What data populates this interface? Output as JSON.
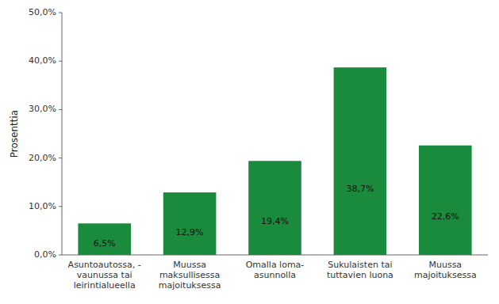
{
  "chart_data": {
    "type": "bar",
    "categories": [
      "Asuntoautossa, -\nvaunussa tai\nleirintialueella",
      "Muussa\nmaksullisessa\nmajoituksessa",
      "Omalla loma-\nasunnolla",
      "Sukulaisten tai\ntuttavien luona",
      "Muussa\nmajoituksessa"
    ],
    "values": [
      6.5,
      12.9,
      19.4,
      38.7,
      22.6
    ],
    "value_labels": [
      "6,5%",
      "12,9%",
      "19,4%",
      "38,7%",
      "22,6%"
    ],
    "data_labels": true,
    "color": "#1a8a3c",
    "ylabel": "Prosenttia",
    "ylim": [
      0,
      50
    ],
    "yticks": [
      {
        "value": 0,
        "label": "0,0%"
      },
      {
        "value": 10,
        "label": "10,0%"
      },
      {
        "value": 20,
        "label": "20,0%"
      },
      {
        "value": 30,
        "label": "30,0%"
      },
      {
        "value": 40,
        "label": "40,0%"
      },
      {
        "value": 50,
        "label": "50,0%"
      }
    ],
    "grid": false
  }
}
